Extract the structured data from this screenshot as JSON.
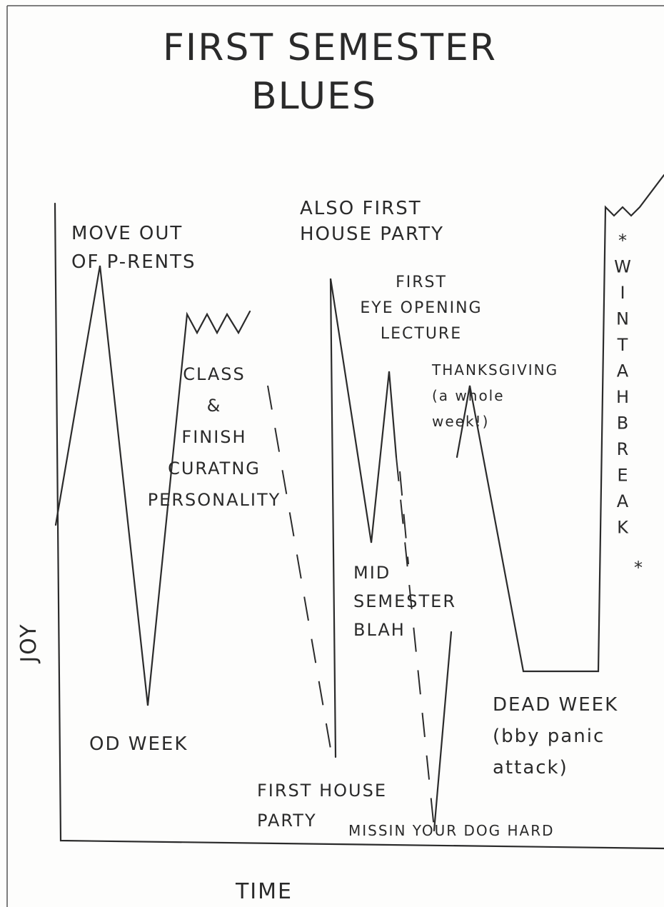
{
  "chart_data": {
    "type": "line",
    "title": [
      "FIRST SEMESTER",
      "BLUES"
    ],
    "y_label": "JOY",
    "x_label": "TIME",
    "annotations": [
      [
        "MOVE OUT",
        "OF P-RENTS"
      ],
      [
        "OD WEEK"
      ],
      [
        "CLASS",
        "&",
        "FINISH",
        "CURATNG",
        "PERSONALITY"
      ],
      [
        "ALSO FIRST",
        "HOUSE PARTY"
      ],
      [
        "FIRST",
        "EYE OPENING",
        "LECTURE"
      ],
      [
        "FIRST HOUSE",
        "PARTY"
      ],
      [
        "MID",
        "SEMESTER",
        "BLAH"
      ],
      [
        "THANKSGIVING",
        "(a whole",
        "week!)"
      ],
      [
        "DEAD WEEK",
        "(bby panic",
        "attack)"
      ],
      [
        "MISSIN YOUR DOG HARD"
      ],
      [
        "*",
        "W",
        "I",
        "N",
        "T",
        "A",
        "H",
        "B",
        "R",
        "E",
        "A",
        "K",
        "*"
      ]
    ]
  }
}
